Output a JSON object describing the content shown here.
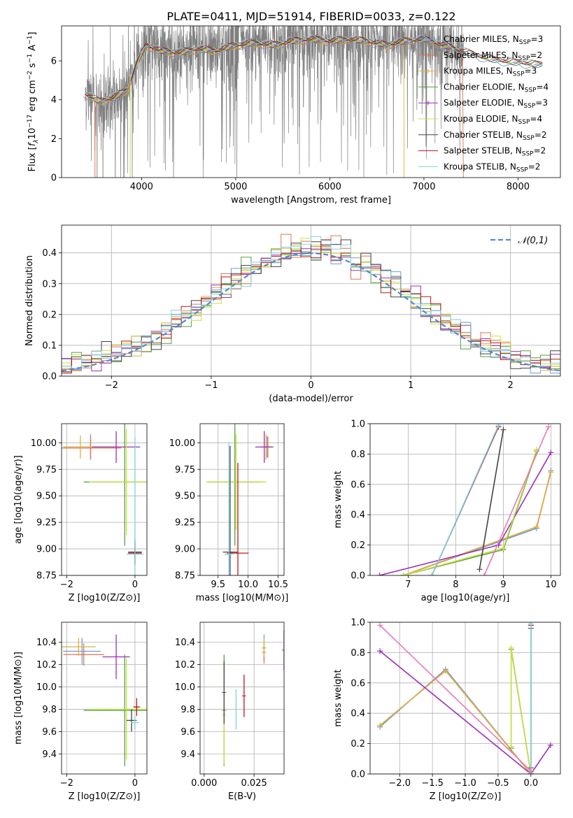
{
  "figure": {
    "title": "PLATE=0411, MJD=51914, FIBERID=0033, z=0.122"
  },
  "series": [
    {
      "name": "Chabrier MILES",
      "n_ssp": "3",
      "color": "#6b9ed6"
    },
    {
      "name": "Salpeter MILES",
      "n_ssp": "2",
      "color": "#e0744c"
    },
    {
      "name": "Kroupa MILES",
      "n_ssp": "3",
      "color": "#e0b040"
    },
    {
      "name": "Chabrier ELODIE",
      "n_ssp": "4",
      "color": "#55a040"
    },
    {
      "name": "Salpeter ELODIE",
      "n_ssp": "3",
      "color": "#9b30b5"
    },
    {
      "name": "Kroupa ELODIE",
      "n_ssp": "4",
      "color": "#c8e040"
    },
    {
      "name": "Chabrier STELIB",
      "n_ssp": "2",
      "color": "#444444"
    },
    {
      "name": "Salpeter STELIB",
      "n_ssp": "2",
      "color": "#b81818"
    },
    {
      "name": "Kroupa STELIB",
      "n_ssp": "2",
      "color": "#80d0e0"
    }
  ],
  "chart_data": [
    {
      "id": "spectrum",
      "type": "line",
      "title": "PLATE=0411, MJD=51914, FIBERID=0033, z=0.122",
      "xlabel": "wavelength [Angstrom, rest frame]",
      "ylabel": "Flux [f_λ 10^-17 erg cm^-2 s^-1 A^-1]",
      "xlim": [
        3150,
        8450
      ],
      "ylim": [
        0,
        7.8
      ],
      "xticks": [
        4000,
        5000,
        6000,
        7000,
        8000
      ],
      "yticks": [
        0,
        2,
        4,
        6
      ],
      "legend_position": "top-right",
      "data_color": "#808080",
      "continuum": [
        [
          3400,
          4.3
        ],
        [
          3550,
          3.9
        ],
        [
          3700,
          4.1
        ],
        [
          3850,
          4.5
        ],
        [
          3950,
          5.9
        ],
        [
          4050,
          6.8
        ],
        [
          4200,
          6.5
        ],
        [
          4400,
          6.4
        ],
        [
          4600,
          6.6
        ],
        [
          4800,
          6.5
        ],
        [
          5000,
          6.8
        ],
        [
          5200,
          6.9
        ],
        [
          5400,
          6.8
        ],
        [
          5600,
          7.0
        ],
        [
          5800,
          7.1
        ],
        [
          6000,
          7.0
        ],
        [
          6200,
          7.1
        ],
        [
          6400,
          7.0
        ],
        [
          6600,
          6.8
        ],
        [
          6800,
          7.0
        ],
        [
          7000,
          7.1
        ],
        [
          7200,
          6.8
        ],
        [
          7400,
          6.5
        ],
        [
          7600,
          6.2
        ],
        [
          7800,
          6.0
        ],
        [
          8000,
          5.9
        ],
        [
          8200,
          5.8
        ]
      ]
    },
    {
      "id": "residuals",
      "type": "line",
      "xlabel": "(data-model)/error",
      "ylabel": "Normed distribution",
      "xlim": [
        -2.5,
        2.5
      ],
      "ylim": [
        0,
        0.49
      ],
      "xticks": [
        -2,
        -1,
        0,
        1,
        2
      ],
      "yticks": [
        0.0,
        0.1,
        0.2,
        0.3,
        0.4
      ],
      "grid": true,
      "reference_curve": {
        "name": "𝒩(0,1)",
        "style": "dashed",
        "color": "#5588cc",
        "mu": 0,
        "sigma": 1
      },
      "bin_width": 0.1
    },
    {
      "id": "age_vs_Z",
      "type": "scatter",
      "xlabel": "Z [log10(Z/Z⊙)]",
      "ylabel": "age  [log10(age/yr)]",
      "xlim": [
        -2.15,
        0.35
      ],
      "ylim": [
        8.75,
        10.18
      ],
      "xticks": [
        -2,
        0
      ],
      "yticks": [
        8.75,
        9.0,
        9.25,
        9.5,
        9.75,
        10.0
      ],
      "grid": true,
      "points": [
        {
          "s": 0,
          "x": -1.3,
          "y": 9.96,
          "xe": 0.8,
          "ye": 0.12
        },
        {
          "s": 1,
          "x": -1.3,
          "y": 9.95,
          "xe": 0.9,
          "ye": 0.1
        },
        {
          "s": 2,
          "x": -1.6,
          "y": 9.96,
          "xe": 0.5,
          "ye": 0.11
        },
        {
          "s": 3,
          "x": -0.3,
          "y": 9.63,
          "xe": 1.2,
          "ye": 0.6
        },
        {
          "s": 4,
          "x": -0.55,
          "y": 9.96,
          "xe": 0.7,
          "ye": 0.15
        },
        {
          "s": 5,
          "x": -0.25,
          "y": 9.63,
          "xe": 1.1,
          "ye": 0.5
        },
        {
          "s": 6,
          "x": 0.0,
          "y": 8.97,
          "xe": 0.2,
          "ye": 0.12
        },
        {
          "s": 7,
          "x": 0.0,
          "y": 8.96,
          "xe": 0.2,
          "ye": 0.1
        },
        {
          "s": 8,
          "x": 0.0,
          "y": 8.95,
          "xe": 0.25,
          "ye": 1.1
        }
      ]
    },
    {
      "id": "age_vs_mass",
      "type": "scatter",
      "xlabel": "mass [log10(M/M⊙)]",
      "ylabel": "",
      "xlim": [
        9.2,
        10.6
      ],
      "ylim": [
        8.75,
        10.18
      ],
      "xticks": [
        9.5,
        10.0,
        10.5
      ],
      "yticks": [
        8.75,
        9.0,
        9.25,
        9.5,
        9.75,
        10.0
      ],
      "grid": true,
      "points": [
        {
          "s": 0,
          "x": 10.32,
          "y": 9.96,
          "xe": 0.1,
          "ye": 0.1
        },
        {
          "s": 1,
          "x": 10.33,
          "y": 9.96,
          "xe": 0.08,
          "ye": 0.1
        },
        {
          "s": 2,
          "x": 10.3,
          "y": 9.96,
          "xe": 0.09,
          "ye": 0.12
        },
        {
          "s": 3,
          "x": 9.78,
          "y": 9.63,
          "xe": 0.45,
          "ye": 0.6
        },
        {
          "s": 4,
          "x": 10.27,
          "y": 9.96,
          "xe": 0.15,
          "ye": 0.15
        },
        {
          "s": 5,
          "x": 9.8,
          "y": 9.63,
          "xe": 0.5,
          "ye": 0.45
        },
        {
          "s": 6,
          "x": 9.7,
          "y": 8.97,
          "xe": 0.12,
          "ye": 1.0
        },
        {
          "s": 7,
          "x": 9.83,
          "y": 8.96,
          "xe": 0.18,
          "ye": 0.85
        },
        {
          "s": 8,
          "x": 9.68,
          "y": 8.95,
          "xe": 0.07,
          "ye": 1.05
        }
      ]
    },
    {
      "id": "massweight_vs_age",
      "type": "line",
      "xlabel": "age  [log10(age/yr)]",
      "ylabel": "mass weight",
      "xlim": [
        6.2,
        10.2
      ],
      "ylim": [
        0.0,
        1.0
      ],
      "xticks": [
        7,
        8,
        9,
        10
      ],
      "yticks": [
        0.0,
        0.2,
        0.4,
        0.6,
        0.8,
        1.0
      ],
      "grid": true,
      "lines": [
        {
          "s": 0,
          "pts": [
            [
              6.9,
              0.0
            ],
            [
              9.7,
              0.31
            ],
            [
              10.0,
              0.69
            ]
          ]
        },
        {
          "s": 1,
          "pts": [
            [
              6.9,
              0.0
            ],
            [
              9.7,
              0.32
            ],
            [
              10.0,
              0.68
            ]
          ]
        },
        {
          "s": 2,
          "pts": [
            [
              6.9,
              0.0
            ],
            [
              9.7,
              0.32
            ],
            [
              10.0,
              0.68
            ]
          ]
        },
        {
          "s": 3,
          "pts": [
            [
              6.9,
              0.0
            ],
            [
              9.0,
              0.17
            ],
            [
              9.7,
              0.82
            ]
          ]
        },
        {
          "s": 4,
          "pts": [
            [
              6.4,
              0.0
            ],
            [
              8.9,
              0.2
            ],
            [
              10.0,
              0.81
            ]
          ]
        },
        {
          "s": 5,
          "pts": [
            [
              6.9,
              0.0
            ],
            [
              9.0,
              0.18
            ],
            [
              9.7,
              0.83
            ]
          ]
        },
        {
          "s": 6,
          "pts": [
            [
              8.5,
              0.04
            ],
            [
              9.0,
              0.96
            ]
          ]
        },
        {
          "s": 7,
          "pts": [
            [
              7.5,
              0.0
            ],
            [
              8.9,
              0.98
            ]
          ]
        },
        {
          "s": 8,
          "pts": [
            [
              7.5,
              0.0
            ],
            [
              8.9,
              0.99
            ]
          ]
        },
        {
          "s": 4,
          "tone": "pink",
          "pts": [
            [
              8.6,
              0.0
            ],
            [
              9.95,
              0.98
            ]
          ]
        }
      ]
    },
    {
      "id": "mass_vs_Z",
      "type": "scatter",
      "xlabel": "Z [log10(Z/Z⊙)]",
      "ylabel": "mass [log10(M/M⊙)]",
      "xlim": [
        -2.15,
        0.35
      ],
      "ylim": [
        9.22,
        10.58
      ],
      "xticks": [
        -2,
        0
      ],
      "yticks": [
        9.4,
        9.6,
        9.8,
        10.0,
        10.2,
        10.4
      ],
      "grid": true,
      "points": [
        {
          "s": 0,
          "x": -1.55,
          "y": 10.32,
          "xe": 0.55,
          "ye": 0.12
        },
        {
          "s": 1,
          "x": -1.5,
          "y": 10.29,
          "xe": 0.6,
          "ye": 0.1
        },
        {
          "s": 2,
          "x": -1.65,
          "y": 10.36,
          "xe": 0.5,
          "ye": 0.08
        },
        {
          "s": 3,
          "x": -0.3,
          "y": 9.79,
          "xe": 1.2,
          "ye": 0.5
        },
        {
          "s": 4,
          "x": -0.55,
          "y": 10.27,
          "xe": 0.4,
          "ye": 0.2
        },
        {
          "s": 5,
          "x": -0.25,
          "y": 9.8,
          "xe": 1.1,
          "ye": 0.45
        },
        {
          "s": 6,
          "x": -0.1,
          "y": 9.7,
          "xe": 0.15,
          "ye": 0.1
        },
        {
          "s": 7,
          "x": 0.05,
          "y": 9.82,
          "xe": 0.1,
          "ye": 0.08
        },
        {
          "s": 8,
          "x": 0.0,
          "y": 9.68,
          "xe": 0.12,
          "ye": 0.06
        }
      ]
    },
    {
      "id": "mass_vs_ebv",
      "type": "scatter",
      "xlabel": "E(B-V)",
      "ylabel": "",
      "xlim": [
        -0.002,
        0.04
      ],
      "ylim": [
        9.22,
        10.58
      ],
      "xticks": [
        0.0,
        0.025
      ],
      "yticks": [
        9.4,
        9.6,
        9.8,
        10.0,
        10.2,
        10.4
      ],
      "grid": true,
      "points": [
        {
          "s": 0,
          "x": 0.03,
          "y": 10.35,
          "xe": 0,
          "ye": 0.12
        },
        {
          "s": 1,
          "x": 0.03,
          "y": 10.31,
          "xe": 0,
          "ye": 0.1
        },
        {
          "s": 2,
          "x": 0.03,
          "y": 10.35,
          "xe": 0,
          "ye": 0.08
        },
        {
          "s": 3,
          "x": 0.01,
          "y": 9.79,
          "xe": 0,
          "ye": 0.5
        },
        {
          "s": 4,
          "x": 0.04,
          "y": 10.33,
          "xe": 0,
          "ye": 0.18
        },
        {
          "s": 5,
          "x": 0.01,
          "y": 9.75,
          "xe": 0,
          "ye": 0.45
        },
        {
          "s": 6,
          "x": 0.01,
          "y": 9.95,
          "xe": 0,
          "ye": 0.28
        },
        {
          "s": 7,
          "x": 0.02,
          "y": 9.92,
          "xe": 0,
          "ye": 0.19
        },
        {
          "s": 8,
          "x": 0.016,
          "y": 9.8,
          "xe": 0,
          "ye": 0.18
        }
      ]
    },
    {
      "id": "massweight_vs_Z",
      "type": "line",
      "xlabel": "Z [log10(Z/Z⊙)]",
      "ylabel": "mass weight",
      "xlim": [
        -2.45,
        0.45
      ],
      "ylim": [
        0.0,
        1.0
      ],
      "xticks": [
        -2.0,
        -1.5,
        -1.0,
        -0.5,
        0.0
      ],
      "yticks": [
        0.0,
        0.2,
        0.4,
        0.6,
        0.8,
        1.0
      ],
      "grid": true,
      "lines": [
        {
          "s": 0,
          "pts": [
            [
              -2.3,
              0.31
            ],
            [
              -1.3,
              0.69
            ],
            [
              0.0,
              0.0
            ]
          ]
        },
        {
          "s": 1,
          "pts": [
            [
              -2.3,
              0.32
            ],
            [
              -1.3,
              0.68
            ],
            [
              0.0,
              0.0
            ]
          ]
        },
        {
          "s": 2,
          "pts": [
            [
              -2.3,
              0.32
            ],
            [
              -1.3,
              0.68
            ],
            [
              0.0,
              0.0
            ]
          ]
        },
        {
          "s": 3,
          "pts": [
            [
              -0.3,
              0.17
            ],
            [
              -0.3,
              0.82
            ],
            [
              0.0,
              0.0
            ]
          ]
        },
        {
          "s": 4,
          "pts": [
            [
              -2.3,
              0.81
            ],
            [
              0.0,
              0.0
            ],
            [
              0.3,
              0.19
            ]
          ]
        },
        {
          "s": 5,
          "pts": [
            [
              -0.3,
              0.18
            ],
            [
              -0.3,
              0.83
            ],
            [
              0.0,
              0.0
            ]
          ]
        },
        {
          "s": 6,
          "pts": [
            [
              0.0,
              0.04
            ],
            [
              0.0,
              0.96
            ]
          ]
        },
        {
          "s": 7,
          "pts": [
            [
              0.0,
              0.02
            ],
            [
              0.0,
              0.98
            ]
          ]
        },
        {
          "s": 8,
          "pts": [
            [
              0.0,
              0.01
            ],
            [
              0.0,
              0.99
            ]
          ]
        },
        {
          "s": 4,
          "tone": "pink",
          "pts": [
            [
              -2.3,
              0.98
            ],
            [
              0.0,
              0.02
            ]
          ]
        }
      ]
    }
  ]
}
